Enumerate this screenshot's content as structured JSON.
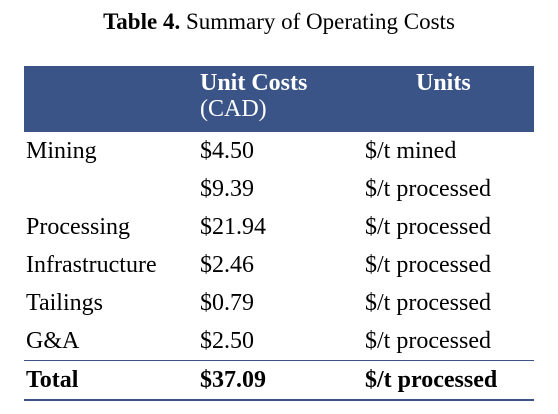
{
  "title": {
    "number": "Table 4.",
    "text": "Summary of Operating Costs"
  },
  "header": {
    "unit_costs": "Unit Costs",
    "unit_costs_sub": "(CAD)",
    "units": "Units"
  },
  "rows": [
    {
      "category": "Mining",
      "cost": "$4.50",
      "unit": "$/t mined"
    },
    {
      "category": "",
      "cost": "$9.39",
      "unit": "$/t processed"
    },
    {
      "category": "Processing",
      "cost": "$21.94",
      "unit": "$/t processed"
    },
    {
      "category": "Infrastructure",
      "cost": "$2.46",
      "unit": "$/t processed"
    },
    {
      "category": "Tailings",
      "cost": "$0.79",
      "unit": "$/t processed"
    },
    {
      "category": "G&A",
      "cost": "$2.50",
      "unit": "$/t processed"
    }
  ],
  "total": {
    "category": "Total",
    "cost": "$37.09",
    "unit": "$/t processed"
  },
  "colors": {
    "header_bg": "#3a5487",
    "header_text": "#ffffff"
  }
}
